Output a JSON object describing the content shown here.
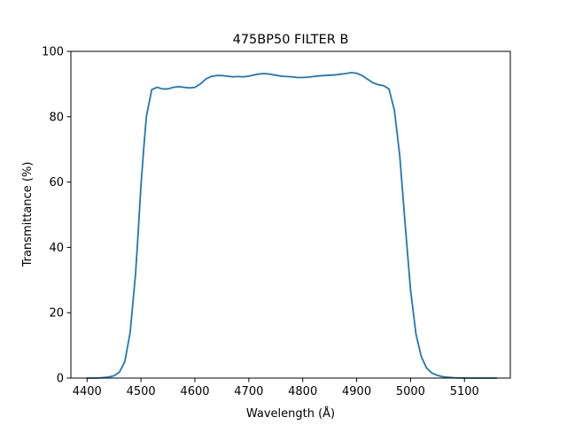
{
  "chart_data": {
    "type": "line",
    "title": "475BP50 FILTER B",
    "xlabel": "Wavelength (Å)",
    "ylabel": "Transmittance (%)",
    "xlim": [
      4370,
      5185
    ],
    "ylim": [
      0,
      100
    ],
    "grid": false,
    "xticks": [
      4400,
      4500,
      4600,
      4700,
      4800,
      4900,
      5000,
      5100
    ],
    "yticks": [
      0,
      20,
      40,
      60,
      80,
      100
    ],
    "series": [
      {
        "color": "#1f77b4",
        "x": [
          4400,
          4420,
          4440,
          4450,
          4460,
          4470,
          4480,
          4490,
          4495,
          4500,
          4505,
          4510,
          4520,
          4530,
          4540,
          4550,
          4560,
          4570,
          4580,
          4590,
          4600,
          4610,
          4620,
          4630,
          4640,
          4650,
          4660,
          4670,
          4680,
          4690,
          4700,
          4710,
          4720,
          4730,
          4740,
          4750,
          4760,
          4770,
          4780,
          4790,
          4800,
          4810,
          4820,
          4830,
          4840,
          4850,
          4860,
          4870,
          4880,
          4890,
          4900,
          4910,
          4920,
          4930,
          4940,
          4950,
          4960,
          4970,
          4980,
          4990,
          5000,
          5010,
          5020,
          5030,
          5040,
          5050,
          5060,
          5080,
          5100,
          5130,
          5160
        ],
        "y": [
          0,
          0,
          0.3,
          0.7,
          1.8,
          5,
          14,
          32,
          45,
          59,
          70,
          80,
          88.3,
          89,
          88.5,
          88.5,
          89,
          89.2,
          89,
          88.8,
          89,
          90,
          91.5,
          92.3,
          92.6,
          92.6,
          92.4,
          92.2,
          92.3,
          92.2,
          92.4,
          92.8,
          93.1,
          93.2,
          93,
          92.7,
          92.4,
          92.3,
          92.2,
          92,
          92,
          92.1,
          92.3,
          92.5,
          92.6,
          92.7,
          92.8,
          93,
          93.2,
          93.5,
          93.3,
          92.6,
          91.5,
          90.4,
          89.8,
          89.5,
          88.5,
          82,
          68,
          47,
          27,
          13.5,
          6.5,
          3,
          1.5,
          0.8,
          0.4,
          0.1,
          0,
          0,
          0
        ]
      }
    ]
  }
}
